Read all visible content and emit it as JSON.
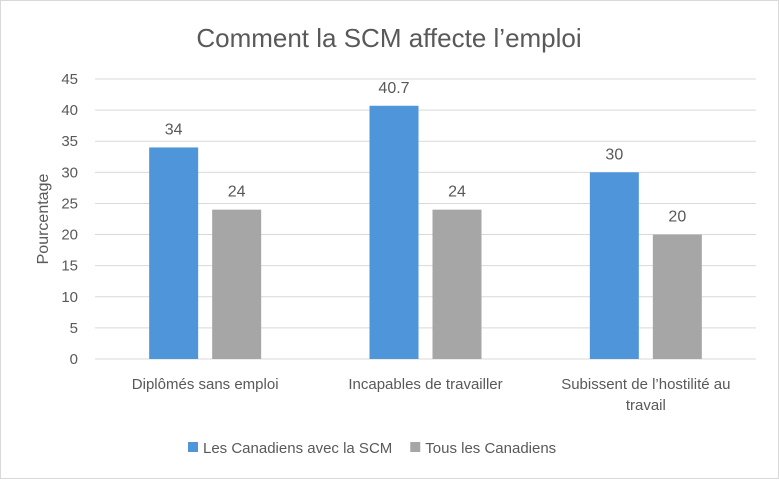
{
  "chart_data": {
    "type": "bar",
    "title": "Comment la SCM affecte l’emploi",
    "xlabel": "",
    "ylabel": "Pourcentage",
    "ylim": [
      0,
      45
    ],
    "yticks": [
      0,
      5,
      10,
      15,
      20,
      25,
      30,
      35,
      40,
      45
    ],
    "grid": true,
    "legend_position": "bottom",
    "categories": [
      [
        "Diplômés sans emploi"
      ],
      [
        "Incapables de travailler"
      ],
      [
        "Subissent de l’hostilité au",
        "travail"
      ]
    ],
    "series": [
      {
        "name": "Les Canadiens avec la SCM",
        "color": "#4e95d9",
        "values": [
          34,
          40.7,
          30
        ],
        "labels": [
          "34",
          "40.7",
          "30"
        ]
      },
      {
        "name": "Tous les Canadiens",
        "color": "#a6a6a6",
        "values": [
          24,
          24,
          20
        ],
        "labels": [
          "24",
          "24",
          "20"
        ]
      }
    ]
  }
}
